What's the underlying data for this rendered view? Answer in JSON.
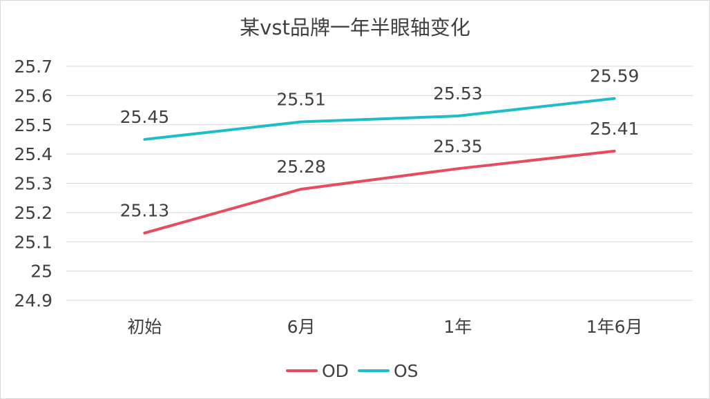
{
  "chart_data": {
    "type": "line",
    "title": "某vst品牌一年半眼轴变化",
    "categories": [
      "初始",
      "6月",
      "1年",
      "1年6月"
    ],
    "series": [
      {
        "name": "OD",
        "values": [
          25.13,
          25.28,
          25.35,
          25.41
        ],
        "color": "#e84a5f"
      },
      {
        "name": "OS",
        "values": [
          25.45,
          25.51,
          25.53,
          25.59
        ],
        "color": "#1fbec6"
      }
    ],
    "y_ticks": [
      "24.9",
      "25",
      "25.1",
      "25.2",
      "25.3",
      "25.4",
      "25.5",
      "25.6",
      "25.7"
    ],
    "ylim": [
      24.9,
      25.7
    ],
    "grid": true,
    "legend_position": "bottom",
    "gridline_color": "#d9d9d9"
  }
}
